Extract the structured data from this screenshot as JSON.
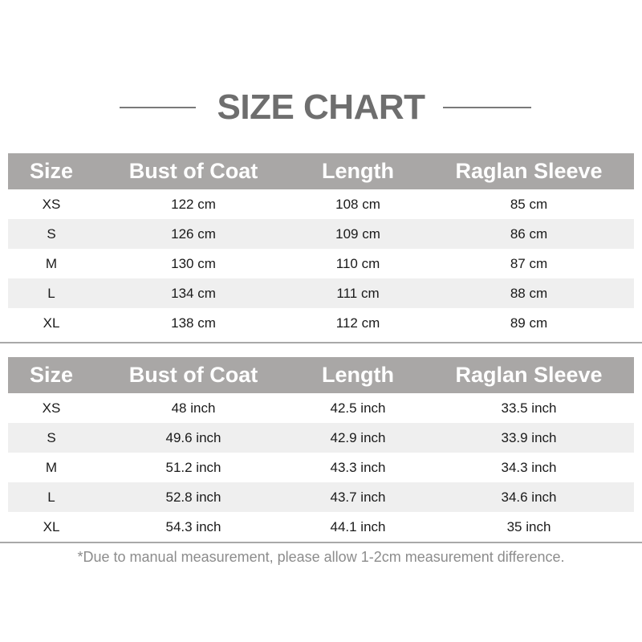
{
  "title": "SIZE CHART",
  "headers": [
    "Size",
    "Bust of Coat",
    "Length",
    "Raglan Sleeve"
  ],
  "cm_table": [
    [
      "XS",
      "122 cm",
      "108 cm",
      "85 cm"
    ],
    [
      "S",
      "126 cm",
      "109 cm",
      "86 cm"
    ],
    [
      "M",
      "130 cm",
      "110 cm",
      "87 cm"
    ],
    [
      "L",
      "134 cm",
      "111 cm",
      "88 cm"
    ],
    [
      "XL",
      "138 cm",
      "112 cm",
      "89 cm"
    ]
  ],
  "inch_table": [
    [
      "XS",
      "48 inch",
      "42.5 inch",
      "33.5 inch"
    ],
    [
      "S",
      "49.6 inch",
      "42.9 inch",
      "33.9 inch"
    ],
    [
      "M",
      "51.2 inch",
      "43.3 inch",
      "34.3 inch"
    ],
    [
      "L",
      "52.8 inch",
      "43.7 inch",
      "34.6 inch"
    ],
    [
      "XL",
      "54.3 inch",
      "44.1 inch",
      "35 inch"
    ]
  ],
  "note": "*Due to manual measurement, please allow 1-2cm measurement difference.",
  "colors": {
    "header_bg": "#a9a7a6",
    "stripe": "#efefef",
    "title": "#6e6e6e"
  }
}
